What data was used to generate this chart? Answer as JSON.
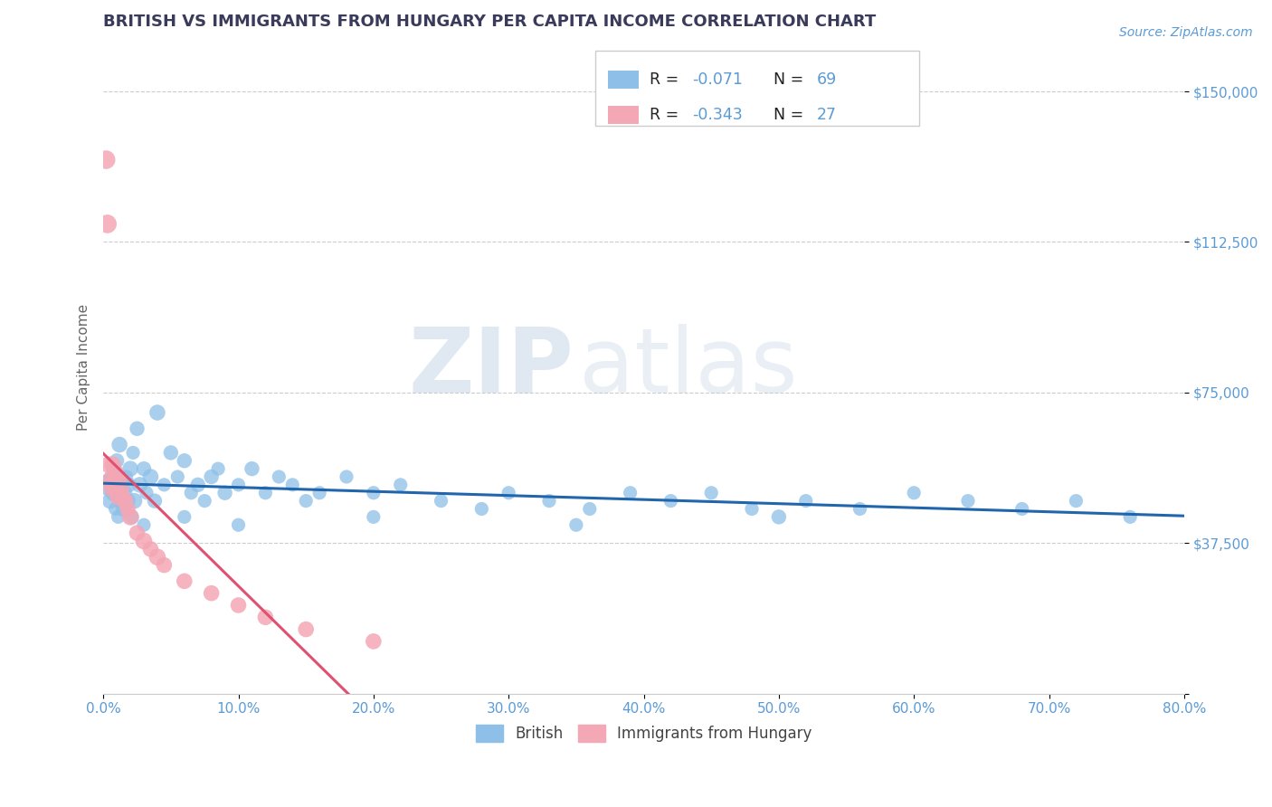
{
  "title": "BRITISH VS IMMIGRANTS FROM HUNGARY PER CAPITA INCOME CORRELATION CHART",
  "source_text": "Source: ZipAtlas.com",
  "ylabel": "Per Capita Income",
  "xlim": [
    0.0,
    0.8
  ],
  "ylim": [
    0,
    162500
  ],
  "yticks": [
    0,
    37500,
    75000,
    112500,
    150000
  ],
  "ytick_labels": [
    "",
    "$37,500",
    "$75,000",
    "$112,500",
    "$150,000"
  ],
  "xticks": [
    0.0,
    0.1,
    0.2,
    0.3,
    0.4,
    0.5,
    0.6,
    0.7,
    0.8
  ],
  "xtick_labels": [
    "0.0%",
    "10.0%",
    "20.0%",
    "30.0%",
    "40.0%",
    "50.0%",
    "60.0%",
    "70.0%",
    "80.0%"
  ],
  "blue_color": "#8dbfe8",
  "pink_color": "#f4a7b5",
  "blue_line_color": "#2166ac",
  "pink_line_color": "#e05070",
  "title_color": "#3a3a5a",
  "axis_color": "#5b9bd5",
  "watermark1": "ZIP",
  "watermark2": "atlas",
  "british_x": [
    0.004,
    0.005,
    0.006,
    0.007,
    0.008,
    0.009,
    0.01,
    0.011,
    0.012,
    0.013,
    0.014,
    0.015,
    0.016,
    0.017,
    0.018,
    0.019,
    0.02,
    0.021,
    0.022,
    0.023,
    0.025,
    0.027,
    0.03,
    0.032,
    0.035,
    0.038,
    0.04,
    0.045,
    0.05,
    0.055,
    0.06,
    0.065,
    0.07,
    0.075,
    0.08,
    0.085,
    0.09,
    0.1,
    0.11,
    0.12,
    0.13,
    0.14,
    0.15,
    0.16,
    0.18,
    0.2,
    0.22,
    0.25,
    0.28,
    0.3,
    0.33,
    0.36,
    0.39,
    0.42,
    0.45,
    0.48,
    0.52,
    0.56,
    0.6,
    0.64,
    0.68,
    0.72,
    0.76,
    0.03,
    0.06,
    0.1,
    0.2,
    0.35,
    0.5
  ],
  "british_y": [
    52000,
    48000,
    54000,
    50000,
    56000,
    46000,
    58000,
    44000,
    62000,
    48000,
    52000,
    46000,
    50000,
    54000,
    48000,
    52000,
    56000,
    44000,
    60000,
    48000,
    66000,
    52000,
    56000,
    50000,
    54000,
    48000,
    70000,
    52000,
    60000,
    54000,
    58000,
    50000,
    52000,
    48000,
    54000,
    56000,
    50000,
    52000,
    56000,
    50000,
    54000,
    52000,
    48000,
    50000,
    54000,
    50000,
    52000,
    48000,
    46000,
    50000,
    48000,
    46000,
    50000,
    48000,
    50000,
    46000,
    48000,
    46000,
    50000,
    48000,
    46000,
    48000,
    44000,
    42000,
    44000,
    42000,
    44000,
    42000,
    44000
  ],
  "british_size": [
    80,
    40,
    35,
    40,
    35,
    30,
    35,
    30,
    40,
    35,
    30,
    40,
    35,
    30,
    40,
    35,
    40,
    35,
    30,
    40,
    35,
    40,
    35,
    30,
    40,
    35,
    40,
    30,
    35,
    30,
    35,
    30,
    35,
    30,
    35,
    30,
    35,
    30,
    35,
    30,
    30,
    30,
    30,
    30,
    30,
    30,
    30,
    30,
    30,
    30,
    30,
    30,
    30,
    30,
    30,
    30,
    30,
    30,
    30,
    30,
    30,
    30,
    30,
    30,
    30,
    30,
    30,
    30,
    35
  ],
  "hungary_x": [
    0.002,
    0.003,
    0.004,
    0.005,
    0.006,
    0.007,
    0.008,
    0.009,
    0.01,
    0.011,
    0.012,
    0.013,
    0.014,
    0.016,
    0.018,
    0.02,
    0.025,
    0.03,
    0.035,
    0.04,
    0.045,
    0.06,
    0.08,
    0.1,
    0.12,
    0.15,
    0.2
  ],
  "hungary_y": [
    133000,
    117000,
    57000,
    53000,
    51000,
    57000,
    53000,
    55000,
    51000,
    49000,
    53000,
    51000,
    49000,
    48000,
    46000,
    44000,
    40000,
    38000,
    36000,
    34000,
    32000,
    28000,
    25000,
    22000,
    19000,
    16000,
    13000
  ],
  "hungary_size": [
    55,
    55,
    45,
    45,
    40,
    45,
    40,
    45,
    40,
    45,
    40,
    45,
    40,
    45,
    40,
    45,
    40,
    45,
    40,
    45,
    40,
    40,
    40,
    40,
    40,
    40,
    40
  ]
}
